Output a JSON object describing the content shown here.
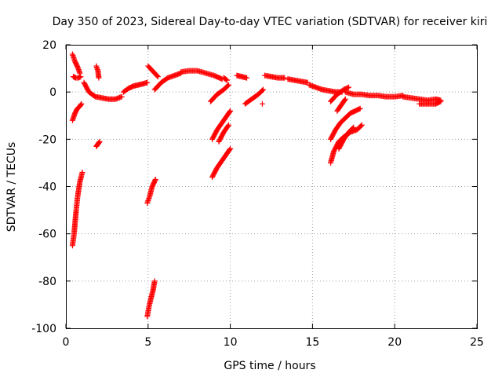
{
  "chart_data": {
    "type": "scatter",
    "title": "Day 350 of 2023, Sidereal Day-to-day VTEC variation (SDTVAR) for receiver kiri",
    "xlabel": "GPS time / hours",
    "ylabel": "SDTVAR / TECUs",
    "xlim": [
      0,
      25
    ],
    "ylim": [
      -100,
      20
    ],
    "xticks": [
      0,
      5,
      10,
      15,
      20,
      25
    ],
    "yticks": [
      -100,
      -80,
      -60,
      -40,
      -20,
      0,
      20
    ],
    "grid": true,
    "marker": "plus",
    "color": "#ff0000",
    "segments": [
      {
        "x": [
          0.4,
          0.55,
          0.75,
          0.85
        ],
        "y": [
          16,
          13,
          10,
          8
        ]
      },
      {
        "x": [
          0.45,
          0.6,
          0.75,
          0.9
        ],
        "y": [
          6.5,
          6,
          6,
          6.5
        ]
      },
      {
        "x": [
          0.4,
          0.55,
          0.7,
          0.85,
          0.95
        ],
        "y": [
          -12,
          -9,
          -7,
          -6,
          -5
        ]
      },
      {
        "x": [
          0.4,
          0.5,
          0.6,
          0.7,
          0.85,
          1.0
        ],
        "y": [
          -65,
          -60,
          -52,
          -45,
          -38,
          -34
        ]
      },
      {
        "x": [
          1.1,
          1.4,
          1.8,
          2.2,
          2.6,
          3.0,
          3.4
        ],
        "y": [
          4,
          0,
          -2,
          -2.5,
          -3,
          -3,
          -2
        ]
      },
      {
        "x": [
          1.85,
          1.95,
          2.0
        ],
        "y": [
          11,
          9,
          6
        ]
      },
      {
        "x": [
          1.85,
          1.95,
          2.05
        ],
        "y": [
          -23,
          -22,
          -21
        ]
      },
      {
        "x": [
          3.5,
          3.8,
          4.1,
          4.4,
          4.7,
          4.95
        ],
        "y": [
          0,
          1.5,
          2.5,
          3,
          3.5,
          4
        ]
      },
      {
        "x": [
          4.95,
          5.1,
          5.25,
          5.45
        ],
        "y": [
          -47,
          -44,
          -40,
          -37
        ]
      },
      {
        "x": [
          4.95,
          5.05,
          5.15,
          5.3,
          5.4
        ],
        "y": [
          -95,
          -91,
          -88,
          -84,
          -80
        ]
      },
      {
        "x": [
          5.0,
          5.2,
          5.4,
          5.6
        ],
        "y": [
          11,
          9.5,
          8,
          6.5
        ]
      },
      {
        "x": [
          5.4,
          5.8,
          6.2,
          6.6,
          7.0
        ],
        "y": [
          1,
          4,
          6,
          7,
          8
        ]
      },
      {
        "x": [
          7.0,
          7.5,
          8.0,
          8.5,
          9.0,
          9.5
        ],
        "y": [
          8.5,
          9,
          9,
          8,
          7,
          5.5
        ]
      },
      {
        "x": [
          8.8,
          9.2,
          9.6,
          9.9
        ],
        "y": [
          -4,
          -1,
          1,
          3
        ]
      },
      {
        "x": [
          8.9,
          9.2,
          9.5,
          9.8,
          10.0
        ],
        "y": [
          -20,
          -16,
          -13,
          -10,
          -8
        ]
      },
      {
        "x": [
          8.9,
          9.2,
          9.5,
          9.8,
          10.0
        ],
        "y": [
          -36,
          -32,
          -29,
          -26,
          -24
        ]
      },
      {
        "x": [
          9.3,
          9.6,
          9.9
        ],
        "y": [
          -21,
          -17,
          -14
        ]
      },
      {
        "x": [
          9.6,
          9.8
        ],
        "y": [
          6,
          5
        ]
      },
      {
        "x": [
          10.4,
          10.7,
          11.0
        ],
        "y": [
          7,
          6.5,
          6
        ]
      },
      {
        "x": [
          10.9,
          11.3,
          11.7,
          12.0
        ],
        "y": [
          -5,
          -3,
          -1,
          1
        ]
      },
      {
        "x": [
          11.95
        ],
        "y": [
          -5
        ]
      },
      {
        "x": [
          12.1,
          12.5,
          12.9,
          13.3
        ],
        "y": [
          7,
          6.5,
          6,
          6
        ]
      },
      {
        "x": [
          13.5,
          13.9,
          14.3,
          14.7
        ],
        "y": [
          5.5,
          5,
          4.5,
          4
        ]
      },
      {
        "x": [
          14.8,
          15.2,
          15.6,
          16.0,
          16.4,
          16.8
        ],
        "y": [
          3,
          2,
          1,
          0.5,
          0,
          0
        ]
      },
      {
        "x": [
          16.1,
          16.5,
          16.9,
          17.2
        ],
        "y": [
          -4,
          -1,
          1,
          2
        ]
      },
      {
        "x": [
          16.1,
          16.4,
          16.7,
          17.0,
          17.3,
          17.6,
          17.9
        ],
        "y": [
          -20,
          -16,
          -13,
          -11,
          -9,
          -8,
          -7
        ]
      },
      {
        "x": [
          16.1,
          16.3,
          16.6,
          16.9,
          17.3,
          17.7,
          18.0
        ],
        "y": [
          -30,
          -25,
          -21,
          -19,
          -17,
          -16,
          -14
        ]
      },
      {
        "x": [
          16.5,
          16.8,
          17.0
        ],
        "y": [
          -8,
          -5,
          -3
        ]
      },
      {
        "x": [
          16.6,
          16.9,
          17.2,
          17.5
        ],
        "y": [
          -24,
          -20,
          -17,
          -15
        ]
      },
      {
        "x": [
          17.0,
          17.5,
          18.0,
          18.5,
          19.0,
          19.5,
          20.0,
          20.5
        ],
        "y": [
          0,
          -1,
          -1,
          -1.5,
          -1.5,
          -2,
          -2,
          -1.5
        ]
      },
      {
        "x": [
          20.5,
          21.0,
          21.5,
          22.0,
          22.5,
          22.8
        ],
        "y": [
          -2,
          -2.5,
          -3,
          -3.5,
          -3,
          -3.5
        ]
      },
      {
        "x": [
          21.5,
          22.0,
          22.5,
          22.8
        ],
        "y": [
          -5,
          -5,
          -5,
          -4
        ]
      }
    ]
  }
}
